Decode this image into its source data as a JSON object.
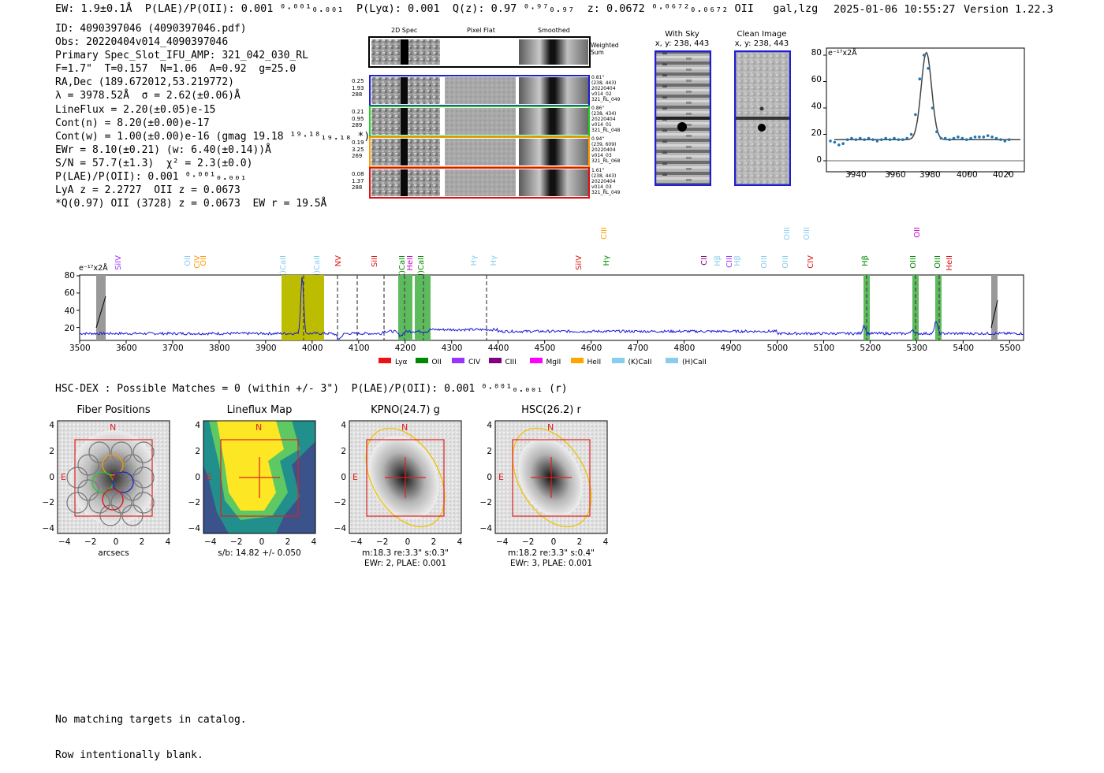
{
  "header": {
    "summary": "EW: 1.9±0.1Å  P(LAE)/P(OII): 0.001 ⁰·⁰⁰¹₀.₀₀₁  P(Lyα): 0.001  Q(z): 0.97 ⁰·⁹⁷₀.₉₇  z: 0.0672 ⁰·⁰⁶⁷²₀.₀₆₇₂ OII   gal,lzg",
    "timestamp": "2025-01-06 10:55:27",
    "version": "Version 1.22.3"
  },
  "info": [
    "ID: 4090397046 (4090397046.pdf)",
    "Obs: 20220404v014_4090397046",
    "Primary Spec_Slot_IFU_AMP: 321_042_030_RL",
    "F=1.7\"  T=0.157  N=1.06  A=0.92  g=25.0",
    "RA,Dec (189.672012,53.219772)",
    "λ = 3978.52Å  σ = 2.62(±0.06)Å",
    "LineFlux = 2.20(±0.05)e-15",
    "Cont(n) = 8.20(±0.00)e-17",
    "Cont(w) = 1.00(±0.00)e-16 (gmag 19.18 ¹⁹·¹⁸₁₉.₁₈ *)",
    "EWr = 8.10(±0.21) (w: 6.40(±0.14))Å",
    "S/N = 57.7(±1.3)  χ² = 2.3(±0.0)",
    "P(LAE)/P(OII): 0.001 ⁰·⁰⁰¹₀.₀₀₁",
    "LyA z = 2.2727  OII z = 0.0673",
    "*Q(0.97) OII (3728) z = 0.0673  EW r = 19.5Å"
  ],
  "cutouts": {
    "col_headers": [
      "2D Spec",
      "Pixel Flat",
      "Smoothed"
    ],
    "weighted_label": "Weighted\nSum",
    "rows": [
      {
        "left": "0.25\n1.93\n288",
        "right": "0.81\"\n(238, 443)\n20220404\nv014_02\n321_RL_049",
        "color": "#1f1fd0"
      },
      {
        "left": "0.21\n0.95\n289",
        "right": "0.86\"\n(238, 434)\n20220404\nv014_01\n321_RL_048",
        "color": "#22cc22"
      },
      {
        "left": "0.19\n3.25\n269",
        "right": "0.94\"\n(239, 609)\n20220404\nv014_03\n321_RL_068",
        "color": "#ff9900"
      },
      {
        "left": "0.08\n1.37\n288",
        "right": "1.61\"\n(238, 443)\n20220404\nv014_03\n321_RL_049",
        "color": "#dd1111"
      }
    ]
  },
  "with_sky": {
    "title": "With Sky",
    "coords": "x, y: 238, 443"
  },
  "clean_image": {
    "title": "Clean Image",
    "coords": "x, y: 238, 443"
  },
  "line_fit": {
    "unit_label": "e⁻¹⁷x2Å",
    "yticks": [
      "80",
      "60",
      "40",
      "20",
      "0"
    ],
    "xticks": [
      "3940",
      "3960",
      "3980",
      "4000",
      "4020"
    ]
  },
  "spectrum": {
    "unit_label": "e⁻¹⁷x2Å",
    "yticks": [
      "80",
      "60",
      "40",
      "20"
    ],
    "xticks": [
      "3500",
      "3600",
      "3700",
      "3800",
      "3900",
      "4000",
      "4100",
      "4200",
      "4300",
      "4400",
      "4500",
      "4600",
      "4700",
      "4800",
      "4900",
      "5000",
      "5100",
      "5200",
      "5300",
      "5400",
      "5500"
    ],
    "line_labels": [
      {
        "text": "SiIV",
        "color": "#9933ff"
      },
      {
        "text": "OII",
        "color": "#88ccee"
      },
      {
        "text": "CIV",
        "color": "#ff9900"
      },
      {
        "text": "OII",
        "color": "#ff9900"
      },
      {
        "text": "(K)CaII",
        "color": "#88ccee"
      },
      {
        "text": "(H)CaII",
        "color": "#88ccee"
      },
      {
        "text": "NV",
        "color": "#dd1111"
      },
      {
        "text": "SiII",
        "color": "#dd1111"
      },
      {
        "text": "(K)CaII",
        "color": "#008800"
      },
      {
        "text": "HeII",
        "color": "#cc00cc"
      },
      {
        "text": "(H)CaII",
        "color": "#008800"
      },
      {
        "text": "Hγ",
        "color": "#88ccee"
      },
      {
        "text": "Hγ",
        "color": "#88ccee"
      },
      {
        "text": "SiIV",
        "color": "#dd1111"
      },
      {
        "text": "CIII",
        "color": "#ff9900"
      },
      {
        "text": "Hγ",
        "color": "#008800"
      },
      {
        "text": "CII",
        "color": "#800080"
      },
      {
        "text": "Hβ",
        "color": "#88ccee"
      },
      {
        "text": "CIII",
        "color": "#9933ff"
      },
      {
        "text": "Hβ",
        "color": "#88ccee"
      },
      {
        "text": "OIII",
        "color": "#88ccee"
      },
      {
        "text": "OIII",
        "color": "#88ccee"
      },
      {
        "text": "OIII",
        "color": "#88ccee"
      },
      {
        "text": "OIII",
        "color": "#88ccee"
      },
      {
        "text": "CIV",
        "color": "#dd1111"
      },
      {
        "text": "Hβ",
        "color": "#008800"
      },
      {
        "text": "OII",
        "color": "#cc00cc"
      },
      {
        "text": "OIII",
        "color": "#008800"
      },
      {
        "text": "OIII",
        "color": "#008800"
      },
      {
        "text": "HeII",
        "color": "#dd1111"
      }
    ],
    "legend": [
      {
        "label": "Lyα",
        "color": "#ee1111"
      },
      {
        "label": "OII",
        "color": "#008800"
      },
      {
        "label": "CIV",
        "color": "#9933ff"
      },
      {
        "label": "CIII",
        "color": "#800080"
      },
      {
        "label": "MgII",
        "color": "#ff00ff"
      },
      {
        "label": "HeII",
        "color": "#ffa500"
      },
      {
        "label": "(K)CaII",
        "color": "#88ccee"
      },
      {
        "label": "(H)CaII",
        "color": "#88ccee"
      }
    ]
  },
  "hsc_line": "HSC-DEX : Possible Matches = 0 (within +/- 3\")  P(LAE)/P(OII): 0.001 ⁰·⁰⁰¹₀.₀₀₁ (r)",
  "panels": [
    {
      "title": "Fiber Positions",
      "caption1": "arcsecs",
      "caption2": ""
    },
    {
      "title": "Lineflux Map",
      "caption1": "s/b: 14.82 +/- 0.050",
      "caption2": ""
    },
    {
      "title": "KPNO(24.7) g",
      "caption1": "m:18.3  re:3.3\"  s:0.3\"",
      "caption2": "EWr: 2, PLAE: 0.001"
    },
    {
      "title": "HSC(26.2) r",
      "caption1": "m:18.2  re:3.3\"  s:0.4\"",
      "caption2": "EWr: 3, PLAE: 0.001"
    }
  ],
  "panel_ticks": {
    "y": [
      "4",
      "2",
      "0",
      "−2",
      "−4"
    ],
    "x": [
      "−4",
      "−2",
      "0",
      "2",
      "4"
    ],
    "north": "N",
    "east": "E"
  },
  "footer": [
    "No matching targets in catalog.",
    "Row intentionally blank."
  ]
}
